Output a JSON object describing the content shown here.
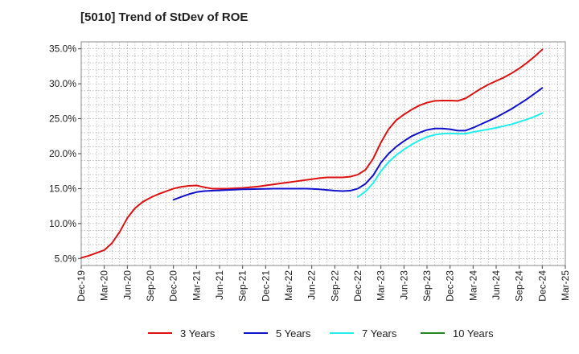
{
  "chart_data": {
    "type": "line",
    "title": "[5010]  Trend of StDev of ROE",
    "xlabel": "",
    "ylabel": "",
    "x_ticks": [
      "Dec-19",
      "Mar-20",
      "Jun-20",
      "Sep-20",
      "Dec-20",
      "Mar-21",
      "Jun-21",
      "Sep-21",
      "Dec-21",
      "Mar-22",
      "Jun-22",
      "Sep-22",
      "Dec-22",
      "Mar-23",
      "Jun-23",
      "Sep-23",
      "Dec-23",
      "Mar-24",
      "Jun-24",
      "Sep-24",
      "Dec-24",
      "Mar-25"
    ],
    "y_ticks": [
      "5.0%",
      "10.0%",
      "15.0%",
      "20.0%",
      "25.0%",
      "30.0%",
      "35.0%"
    ],
    "ylim": [
      4.0,
      36.0
    ],
    "grid": true,
    "legend_position": "bottom",
    "series": [
      {
        "name": "3 Years",
        "color": "#dd1111",
        "points": [
          [
            "Dec-19",
            5.1
          ],
          [
            "Jan-20",
            5.4
          ],
          [
            "Feb-20",
            5.8
          ],
          [
            "Mar-20",
            6.2
          ],
          [
            "Apr-20",
            7.2
          ],
          [
            "May-20",
            8.8
          ],
          [
            "Jun-20",
            10.8
          ],
          [
            "Jul-20",
            12.2
          ],
          [
            "Aug-20",
            13.1
          ],
          [
            "Sep-20",
            13.7
          ],
          [
            "Oct-20",
            14.2
          ],
          [
            "Nov-20",
            14.6
          ],
          [
            "Dec-20",
            15.0
          ],
          [
            "Jan-21",
            15.25
          ],
          [
            "Feb-21",
            15.4
          ],
          [
            "Mar-21",
            15.45
          ],
          [
            "Apr-21",
            15.2
          ],
          [
            "May-21",
            15.0
          ],
          [
            "Jun-21",
            15.0
          ],
          [
            "Jul-21",
            15.0
          ],
          [
            "Aug-21",
            15.05
          ],
          [
            "Sep-21",
            15.1
          ],
          [
            "Oct-21",
            15.2
          ],
          [
            "Nov-21",
            15.3
          ],
          [
            "Dec-21",
            15.45
          ],
          [
            "Jan-22",
            15.6
          ],
          [
            "Feb-22",
            15.75
          ],
          [
            "Mar-22",
            15.9
          ],
          [
            "Apr-22",
            16.05
          ],
          [
            "May-22",
            16.2
          ],
          [
            "Jun-22",
            16.35
          ],
          [
            "Jul-22",
            16.5
          ],
          [
            "Aug-22",
            16.6
          ],
          [
            "Sep-22",
            16.6
          ],
          [
            "Oct-22",
            16.6
          ],
          [
            "Nov-22",
            16.7
          ],
          [
            "Dec-22",
            17.0
          ],
          [
            "Jan-23",
            17.7
          ],
          [
            "Feb-23",
            19.3
          ],
          [
            "Mar-23",
            21.6
          ],
          [
            "Apr-23",
            23.5
          ],
          [
            "May-23",
            24.8
          ],
          [
            "Jun-23",
            25.6
          ],
          [
            "Jul-23",
            26.3
          ],
          [
            "Aug-23",
            26.9
          ],
          [
            "Sep-23",
            27.3
          ],
          [
            "Oct-23",
            27.55
          ],
          [
            "Nov-23",
            27.6
          ],
          [
            "Dec-23",
            27.6
          ],
          [
            "Jan-24",
            27.55
          ],
          [
            "Feb-24",
            27.9
          ],
          [
            "Mar-24",
            28.6
          ],
          [
            "Apr-24",
            29.3
          ],
          [
            "May-24",
            29.9
          ],
          [
            "Jun-24",
            30.4
          ],
          [
            "Jul-24",
            30.9
          ],
          [
            "Aug-24",
            31.5
          ],
          [
            "Sep-24",
            32.2
          ],
          [
            "Oct-24",
            33.0
          ],
          [
            "Nov-24",
            33.9
          ],
          [
            "Dec-24",
            34.9
          ]
        ]
      },
      {
        "name": "5 Years",
        "color": "#1111cc",
        "points": [
          [
            "Dec-20",
            13.4
          ],
          [
            "Jan-21",
            13.8
          ],
          [
            "Feb-21",
            14.2
          ],
          [
            "Mar-21",
            14.5
          ],
          [
            "Apr-21",
            14.65
          ],
          [
            "May-21",
            14.7
          ],
          [
            "Jun-21",
            14.75
          ],
          [
            "Jul-21",
            14.8
          ],
          [
            "Aug-21",
            14.85
          ],
          [
            "Sep-21",
            14.9
          ],
          [
            "Oct-21",
            14.92
          ],
          [
            "Nov-21",
            14.95
          ],
          [
            "Dec-21",
            14.97
          ],
          [
            "Jan-22",
            15.0
          ],
          [
            "Feb-22",
            15.0
          ],
          [
            "Mar-22",
            15.0
          ],
          [
            "Apr-22",
            15.0
          ],
          [
            "May-22",
            15.0
          ],
          [
            "Jun-22",
            14.97
          ],
          [
            "Jul-22",
            14.9
          ],
          [
            "Aug-22",
            14.8
          ],
          [
            "Sep-22",
            14.7
          ],
          [
            "Oct-22",
            14.65
          ],
          [
            "Nov-22",
            14.7
          ],
          [
            "Dec-22",
            15.0
          ],
          [
            "Jan-23",
            15.7
          ],
          [
            "Feb-23",
            16.9
          ],
          [
            "Mar-23",
            18.7
          ],
          [
            "Apr-23",
            20.0
          ],
          [
            "May-23",
            21.0
          ],
          [
            "Jun-23",
            21.8
          ],
          [
            "Jul-23",
            22.5
          ],
          [
            "Aug-23",
            23.0
          ],
          [
            "Sep-23",
            23.4
          ],
          [
            "Oct-23",
            23.6
          ],
          [
            "Nov-23",
            23.6
          ],
          [
            "Dec-23",
            23.5
          ],
          [
            "Jan-24",
            23.3
          ],
          [
            "Feb-24",
            23.3
          ],
          [
            "Mar-24",
            23.7
          ],
          [
            "Apr-24",
            24.2
          ],
          [
            "May-24",
            24.7
          ],
          [
            "Jun-24",
            25.2
          ],
          [
            "Jul-24",
            25.8
          ],
          [
            "Aug-24",
            26.4
          ],
          [
            "Sep-24",
            27.1
          ],
          [
            "Oct-24",
            27.8
          ],
          [
            "Nov-24",
            28.6
          ],
          [
            "Dec-24",
            29.4
          ]
        ]
      },
      {
        "name": "7 Years",
        "color": "#22eeee",
        "points": [
          [
            "Dec-22",
            13.8
          ],
          [
            "Jan-23",
            14.6
          ],
          [
            "Feb-23",
            15.8
          ],
          [
            "Mar-23",
            17.5
          ],
          [
            "Apr-23",
            18.8
          ],
          [
            "May-23",
            19.8
          ],
          [
            "Jun-23",
            20.6
          ],
          [
            "Jul-23",
            21.3
          ],
          [
            "Aug-23",
            21.9
          ],
          [
            "Sep-23",
            22.4
          ],
          [
            "Oct-23",
            22.7
          ],
          [
            "Nov-23",
            22.85
          ],
          [
            "Dec-23",
            22.9
          ],
          [
            "Jan-24",
            22.85
          ],
          [
            "Feb-24",
            22.85
          ],
          [
            "Mar-24",
            23.1
          ],
          [
            "Apr-24",
            23.3
          ],
          [
            "May-24",
            23.5
          ],
          [
            "Jun-24",
            23.7
          ],
          [
            "Jul-24",
            23.95
          ],
          [
            "Aug-24",
            24.2
          ],
          [
            "Sep-24",
            24.55
          ],
          [
            "Oct-24",
            24.9
          ],
          [
            "Nov-24",
            25.3
          ],
          [
            "Dec-24",
            25.8
          ]
        ]
      },
      {
        "name": "10 Years",
        "color": "#228822",
        "points": []
      }
    ]
  }
}
